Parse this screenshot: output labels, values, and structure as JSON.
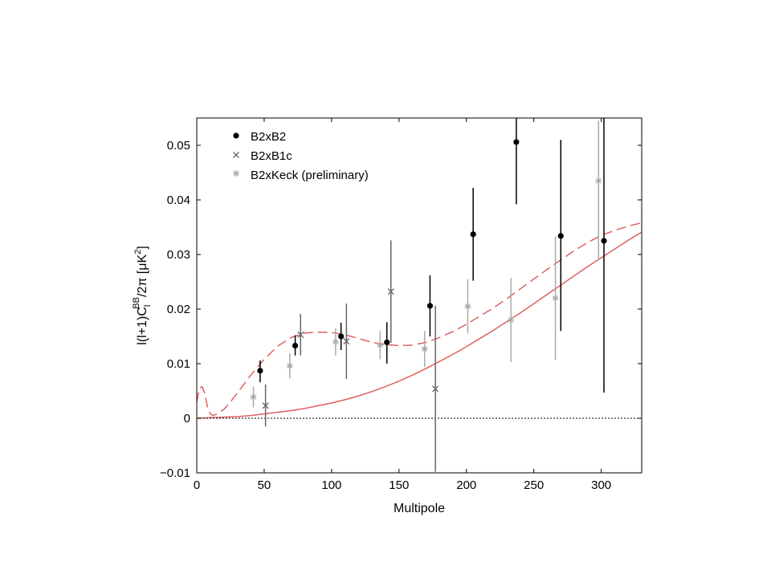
{
  "chart_data": {
    "type": "scatter",
    "xlabel": "Multipole",
    "ylabel": {
      "main": "l(l+1)C",
      "sub": "l",
      "sup": "BB",
      "tail": "/2π [μK",
      "unit_sup": "2",
      "close": "]"
    },
    "xlim": [
      0,
      330
    ],
    "ylim": [
      -0.01,
      0.055
    ],
    "xticks": [
      0,
      50,
      100,
      150,
      200,
      250,
      300
    ],
    "xtick_labels": [
      "0",
      "50",
      "100",
      "150",
      "200",
      "250",
      "300"
    ],
    "yticks": [
      -0.01,
      0,
      0.01,
      0.02,
      0.03,
      0.04,
      0.05
    ],
    "ytick_labels": [
      "−0.01",
      "0",
      "0.01",
      "0.02",
      "0.03",
      "0.04",
      "0.05"
    ],
    "grid": false,
    "legend_position": "top-left",
    "series": [
      {
        "name": "B2xB2",
        "marker": "dot",
        "color": "#000000",
        "points": [
          {
            "x": 47,
            "y": 0.0087,
            "lo": 0.0066,
            "hi": 0.0106
          },
          {
            "x": 73,
            "y": 0.0133,
            "lo": 0.0115,
            "hi": 0.0152
          },
          {
            "x": 107,
            "y": 0.015,
            "lo": 0.0125,
            "hi": 0.0175
          },
          {
            "x": 141,
            "y": 0.0139,
            "lo": 0.01,
            "hi": 0.0176
          },
          {
            "x": 173,
            "y": 0.0206,
            "lo": 0.015,
            "hi": 0.0262
          },
          {
            "x": 205,
            "y": 0.0337,
            "lo": 0.0252,
            "hi": 0.0422
          },
          {
            "x": 237,
            "y": 0.0506,
            "lo": 0.0392,
            "hi": 0.056
          },
          {
            "x": 270,
            "y": 0.0334,
            "lo": 0.016,
            "hi": 0.051
          },
          {
            "x": 302,
            "y": 0.0325,
            "lo": 0.0047,
            "hi": 0.056
          }
        ]
      },
      {
        "name": "B2xB1c",
        "marker": "x",
        "color": "#666666",
        "points": [
          {
            "x": 51,
            "y": 0.0023,
            "lo": -0.0015,
            "hi": 0.0062
          },
          {
            "x": 77,
            "y": 0.0153,
            "lo": 0.0115,
            "hi": 0.0191
          },
          {
            "x": 111,
            "y": 0.0141,
            "lo": 0.0072,
            "hi": 0.021
          },
          {
            "x": 144,
            "y": 0.0232,
            "lo": 0.0138,
            "hi": 0.0326
          },
          {
            "x": 177,
            "y": 0.0054,
            "lo": -0.0098,
            "hi": 0.0206
          }
        ]
      },
      {
        "name": "B2xKeck (preliminary)",
        "marker": "asterisk",
        "color": "#aaaaaa",
        "points": [
          {
            "x": 42,
            "y": 0.0039,
            "lo": 0.002,
            "hi": 0.0058
          },
          {
            "x": 69,
            "y": 0.0096,
            "lo": 0.0073,
            "hi": 0.0119
          },
          {
            "x": 103,
            "y": 0.014,
            "lo": 0.0115,
            "hi": 0.0165
          },
          {
            "x": 136,
            "y": 0.0134,
            "lo": 0.0108,
            "hi": 0.016
          },
          {
            "x": 169,
            "y": 0.0127,
            "lo": 0.0094,
            "hi": 0.016
          },
          {
            "x": 201,
            "y": 0.0205,
            "lo": 0.0155,
            "hi": 0.0255
          },
          {
            "x": 233,
            "y": 0.018,
            "lo": 0.0103,
            "hi": 0.0257
          },
          {
            "x": 266,
            "y": 0.022,
            "lo": 0.0107,
            "hi": 0.0333
          },
          {
            "x": 298,
            "y": 0.0435,
            "lo": 0.029,
            "hi": 0.0545
          }
        ]
      }
    ],
    "curves": [
      {
        "style": "solid",
        "color": "#e06060",
        "x": [
          0,
          10,
          20,
          30,
          40,
          50,
          60,
          70,
          80,
          90,
          100,
          110,
          120,
          130,
          140,
          150,
          160,
          170,
          180,
          190,
          200,
          210,
          220,
          230,
          240,
          250,
          260,
          270,
          280,
          290,
          300,
          310,
          320,
          330
        ],
        "y": [
          0,
          0.0001,
          0.0002,
          0.0003,
          0.0005,
          0.0008,
          0.0011,
          0.0014,
          0.0018,
          0.0023,
          0.0028,
          0.0034,
          0.0041,
          0.0049,
          0.0058,
          0.0068,
          0.0079,
          0.0091,
          0.0104,
          0.0117,
          0.0131,
          0.0146,
          0.0161,
          0.0177,
          0.0193,
          0.021,
          0.0227,
          0.0244,
          0.0261,
          0.0278,
          0.0294,
          0.031,
          0.0326,
          0.0341
        ]
      },
      {
        "style": "dashed",
        "color": "#e06060",
        "x": [
          0,
          2,
          4,
          6,
          8,
          10,
          12,
          15,
          20,
          25,
          30,
          40,
          50,
          60,
          70,
          80,
          90,
          100,
          110,
          120,
          130,
          140,
          150,
          160,
          170,
          180,
          190,
          200,
          210,
          220,
          230,
          240,
          250,
          260,
          270,
          280,
          290,
          300,
          310,
          320,
          330
        ],
        "y": [
          0.003,
          0.0055,
          0.0058,
          0.0045,
          0.002,
          0.0008,
          0.0005,
          0.0008,
          0.0016,
          0.003,
          0.0046,
          0.0079,
          0.0108,
          0.0132,
          0.0148,
          0.0156,
          0.0158,
          0.0157,
          0.0153,
          0.0146,
          0.0139,
          0.0135,
          0.0133,
          0.0134,
          0.0139,
          0.0148,
          0.0159,
          0.0172,
          0.0187,
          0.0202,
          0.0219,
          0.0237,
          0.0255,
          0.0273,
          0.029,
          0.0307,
          0.0322,
          0.0335,
          0.0344,
          0.0352,
          0.0358
        ]
      },
      {
        "style": "dotted",
        "color": "#000000",
        "x": [
          0,
          330
        ],
        "y": [
          0,
          0
        ]
      }
    ]
  }
}
